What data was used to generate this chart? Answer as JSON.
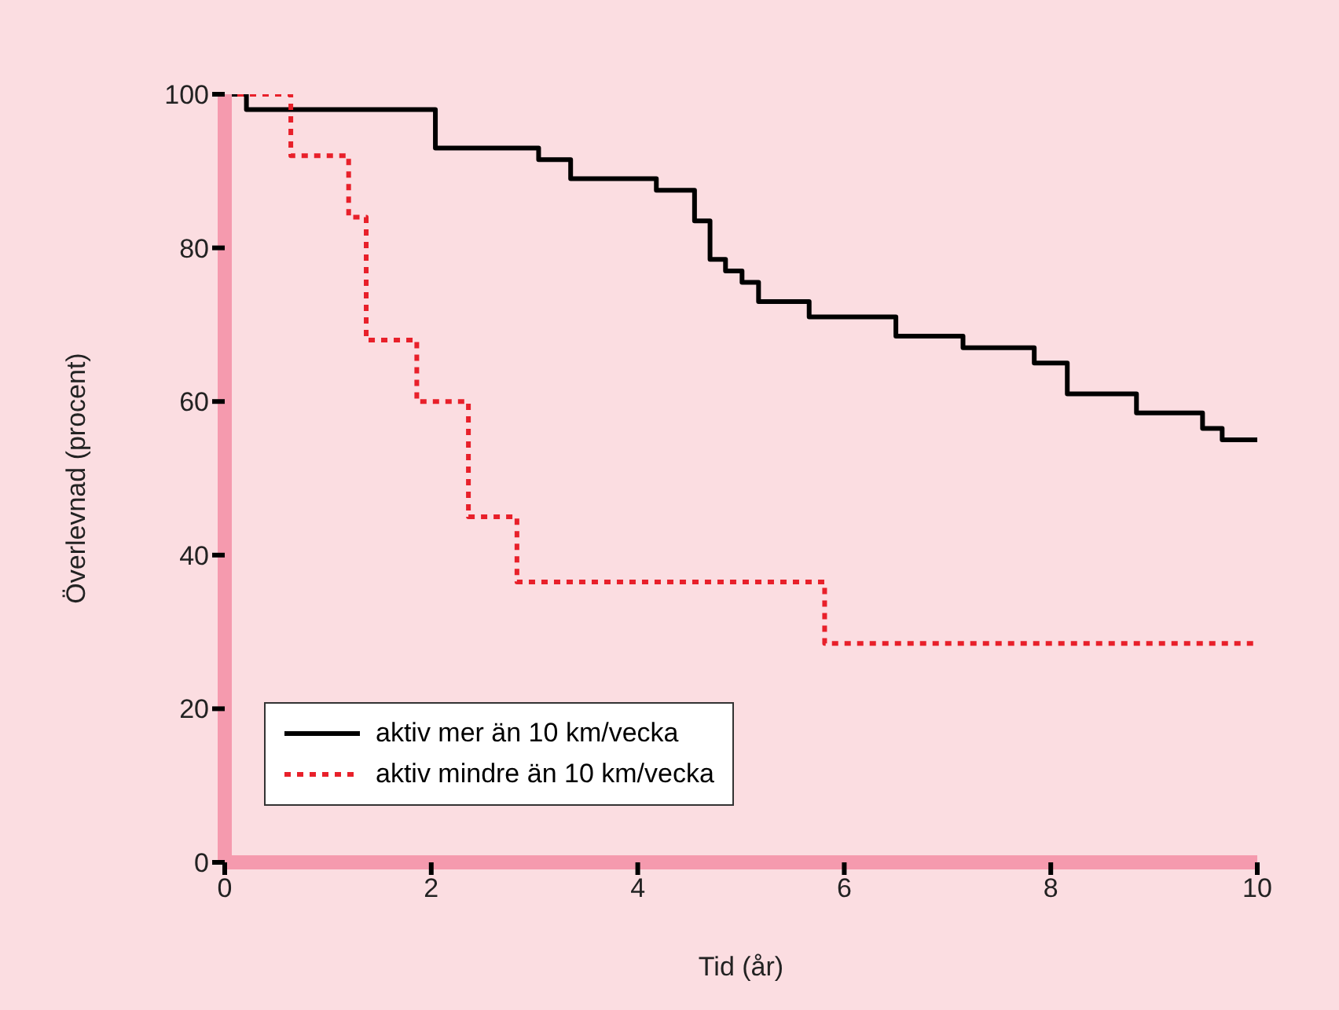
{
  "chart_data": {
    "type": "step",
    "xlabel": "Tid (år)",
    "ylabel": "Överlevnad (procent)",
    "xlim": [
      0,
      10
    ],
    "xticks": [
      0,
      2,
      4,
      6,
      8,
      10
    ],
    "ylim": [
      0,
      100
    ],
    "yticks": [
      0,
      20,
      40,
      60,
      80,
      100
    ],
    "legend": "bottom left",
    "series": [
      {
        "name": "aktiv mer än 10 km/vecka",
        "color": "#000000",
        "line_style": "solid",
        "x": [
          0,
          0.21,
          2.04,
          3.04,
          3.35,
          4.18,
          4.55,
          4.7,
          4.85,
          5.01,
          5.17,
          5.66,
          6.5,
          7.15,
          7.84,
          8.16,
          8.83,
          9.47,
          9.66,
          10
        ],
        "values": [
          100,
          98,
          93,
          91.5,
          89,
          87.5,
          83.5,
          78.5,
          77,
          75.5,
          73,
          71,
          68.5,
          67,
          65,
          61,
          58.5,
          56.5,
          55,
          55
        ]
      },
      {
        "name": "aktiv mindre än 10 km/vecka",
        "color": "#e8202a",
        "line_style": "dotted",
        "x": [
          0,
          0.64,
          1.2,
          1.37,
          1.86,
          2.36,
          2.83,
          5.81,
          10
        ],
        "values": [
          100,
          92,
          84,
          68,
          60,
          45,
          36.5,
          28.5,
          28.5
        ]
      }
    ]
  }
}
